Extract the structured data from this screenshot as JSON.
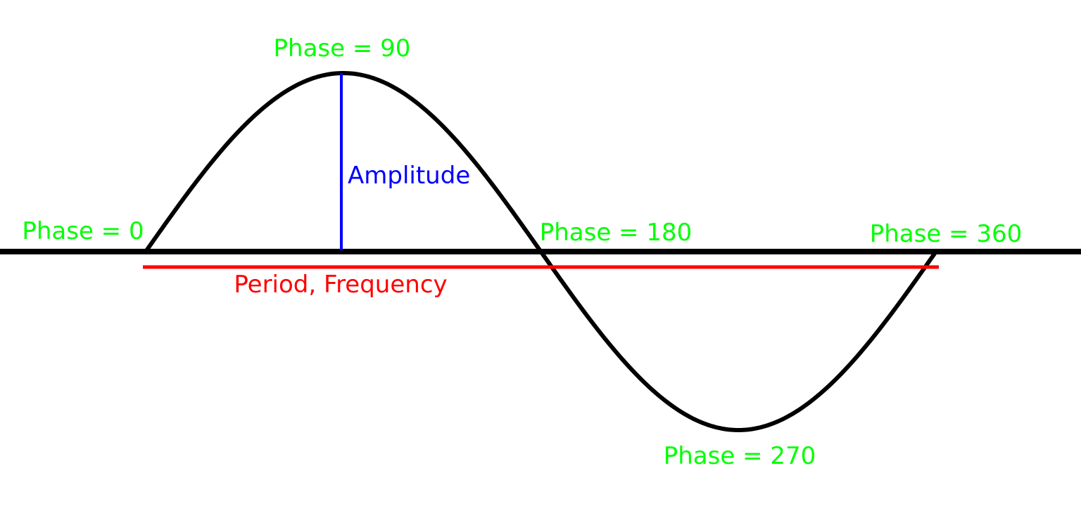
{
  "colors": {
    "background": "#ffffff",
    "wave": "#000000",
    "axis": "#000000",
    "amplitude": "#0000ff",
    "period": "#ff0000",
    "phase_labels": "#00ff00"
  },
  "labels": {
    "phase_0": "Phase = 0",
    "phase_90": "Phase = 90",
    "phase_180": "Phase = 180",
    "phase_270": "Phase = 270",
    "phase_360": "Phase = 360",
    "amplitude": "Amplitude",
    "period": "Period, Frequency"
  }
}
